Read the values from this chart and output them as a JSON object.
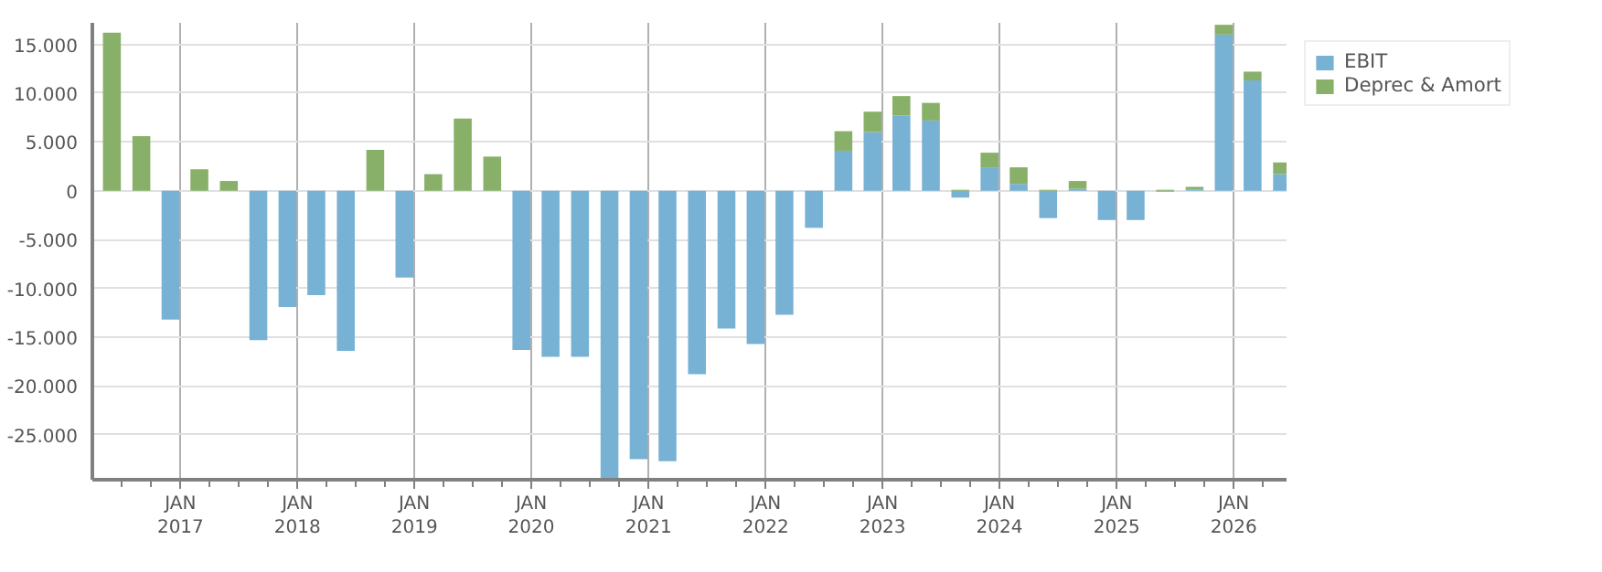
{
  "chart_data": {
    "type": "bar",
    "stacked": true,
    "x": [
      "2016-06",
      "2016-09",
      "2016-12",
      "2017-03",
      "2017-06",
      "2017-09",
      "2017-12",
      "2018-03",
      "2018-06",
      "2018-09",
      "2018-12",
      "2019-03",
      "2019-06",
      "2019-09",
      "2019-12",
      "2020-03",
      "2020-06",
      "2020-09",
      "2020-12",
      "2021-03",
      "2021-06",
      "2021-09",
      "2021-12",
      "2022-03",
      "2022-06",
      "2022-09",
      "2022-12",
      "2023-03",
      "2023-06",
      "2023-09",
      "2023-12",
      "2024-03",
      "2024-06",
      "2024-09",
      "2024-12",
      "2025-03",
      "2025-06",
      "2025-09",
      "2025-12",
      "2026-03",
      "2026-06"
    ],
    "series": [
      {
        "name": "EBIT",
        "color": "#77b1d4",
        "values": [
          0,
          0,
          -13200,
          0,
          0,
          -15300,
          -11900,
          -10700,
          -16400,
          0,
          -8900,
          0,
          0,
          0,
          -16300,
          -17000,
          -17000,
          -29600,
          -27500,
          -27700,
          -18800,
          -14100,
          -15700,
          -12700,
          -3800,
          4100,
          6000,
          7700,
          7200,
          -700,
          2400,
          700,
          -2800,
          200,
          -3000,
          -3000,
          -100,
          100,
          16000,
          11300,
          1700
        ]
      },
      {
        "name": "Deprec & Amort",
        "color": "#88b068",
        "values": [
          16200,
          5600,
          0,
          2200,
          1000,
          0,
          0,
          0,
          0,
          4200,
          0,
          1700,
          7400,
          3500,
          0,
          0,
          0,
          0,
          0,
          0,
          0,
          0,
          0,
          0,
          0,
          2000,
          2100,
          2000,
          1800,
          100,
          1500,
          1700,
          100,
          800,
          0,
          0,
          100,
          300,
          1000,
          900,
          1200
        ]
      }
    ],
    "xlim": [
      "2016-04-01",
      "2026-06-15"
    ],
    "xticks": [
      {
        "value": "2016-07-01",
        "label": null
      },
      {
        "value": "2016-10-01",
        "label": null
      },
      {
        "value": "2017-01-01",
        "label": "JAN\n2017"
      },
      {
        "value": "2017-04-01",
        "label": null
      },
      {
        "value": "2017-07-01",
        "label": null
      },
      {
        "value": "2017-10-01",
        "label": null
      },
      {
        "value": "2018-01-01",
        "label": "JAN\n2018"
      },
      {
        "value": "2018-04-01",
        "label": null
      },
      {
        "value": "2018-07-01",
        "label": null
      },
      {
        "value": "2018-10-01",
        "label": null
      },
      {
        "value": "2019-01-01",
        "label": "JAN\n2019"
      },
      {
        "value": "2019-04-01",
        "label": null
      },
      {
        "value": "2019-07-01",
        "label": null
      },
      {
        "value": "2019-10-01",
        "label": null
      },
      {
        "value": "2020-01-01",
        "label": "JAN\n2020"
      },
      {
        "value": "2020-04-01",
        "label": null
      },
      {
        "value": "2020-07-01",
        "label": null
      },
      {
        "value": "2020-10-01",
        "label": null
      },
      {
        "value": "2021-01-01",
        "label": "JAN\n2021"
      },
      {
        "value": "2021-04-01",
        "label": null
      },
      {
        "value": "2021-07-01",
        "label": null
      },
      {
        "value": "2021-10-01",
        "label": null
      },
      {
        "value": "2022-01-01",
        "label": "JAN\n2022"
      },
      {
        "value": "2022-04-01",
        "label": null
      },
      {
        "value": "2022-07-01",
        "label": null
      },
      {
        "value": "2022-10-01",
        "label": null
      },
      {
        "value": "2023-01-01",
        "label": "JAN\n2023"
      },
      {
        "value": "2023-04-01",
        "label": null
      },
      {
        "value": "2023-07-01",
        "label": null
      },
      {
        "value": "2023-10-01",
        "label": null
      },
      {
        "value": "2024-01-01",
        "label": "JAN\n2024"
      },
      {
        "value": "2024-04-01",
        "label": null
      },
      {
        "value": "2024-07-01",
        "label": null
      },
      {
        "value": "2024-10-01",
        "label": null
      },
      {
        "value": "2025-01-01",
        "label": "JAN\n2025"
      },
      {
        "value": "2025-04-01",
        "label": null
      },
      {
        "value": "2025-07-01",
        "label": null
      },
      {
        "value": "2025-10-01",
        "label": null
      },
      {
        "value": "2026-01-01",
        "label": "JAN\n2026"
      },
      {
        "value": "2026-04-01",
        "label": null
      }
    ],
    "ylim": [
      -29600,
      17200
    ],
    "yticks": [
      {
        "value": -25000,
        "label": "-25.000"
      },
      {
        "value": -20000,
        "label": "-20.000"
      },
      {
        "value": -15000,
        "label": "-15.000"
      },
      {
        "value": -10000,
        "label": "-10.000"
      },
      {
        "value": -5000,
        "label": "-5.000"
      },
      0,
      {
        "value": 5000,
        "label": "5.000"
      },
      {
        "value": 10000,
        "label": "10.000"
      },
      {
        "value": 15000,
        "label": "15.000"
      }
    ],
    "grid": true,
    "legend": "top right"
  }
}
